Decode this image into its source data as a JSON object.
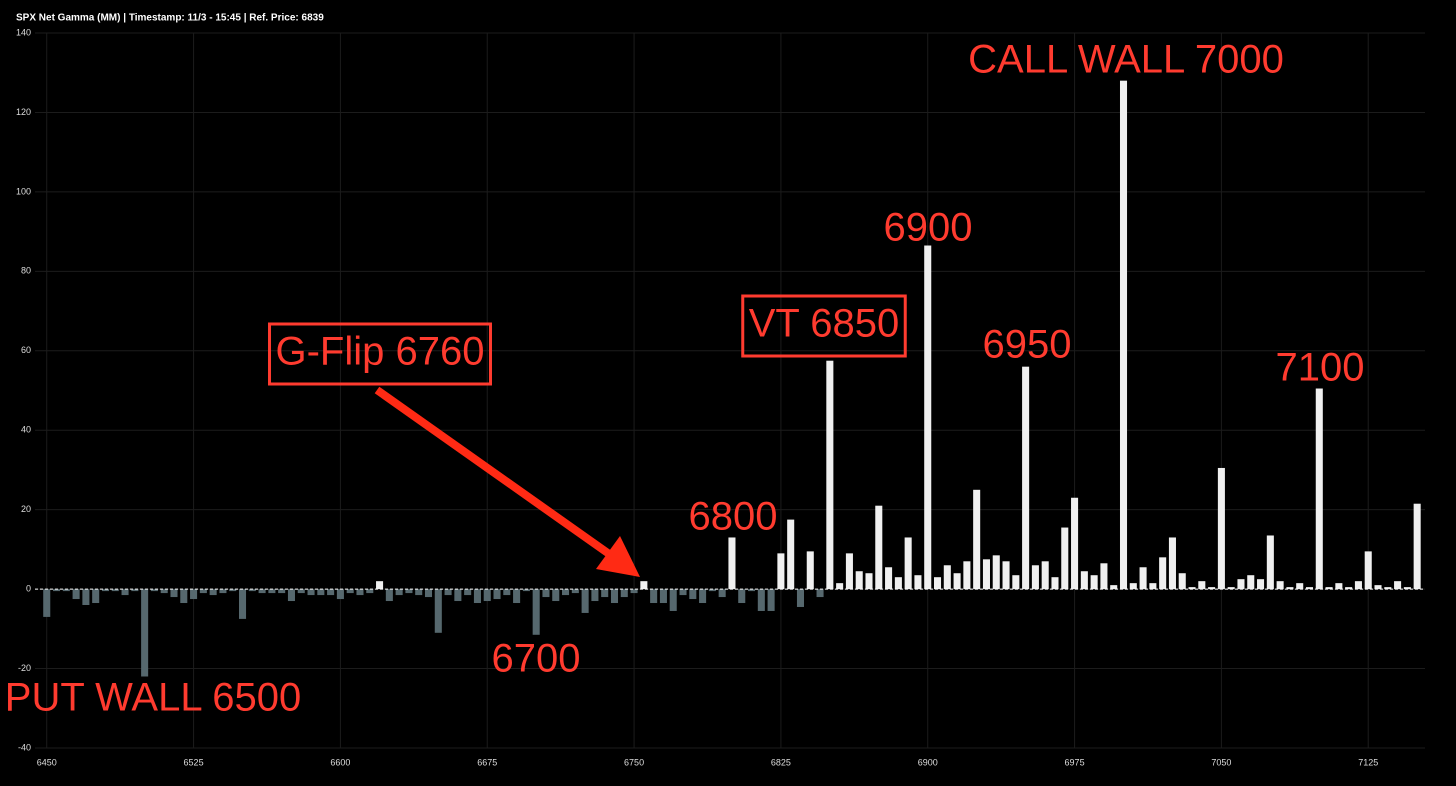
{
  "chart_data": {
    "type": "bar",
    "title": "SPX Net Gamma (MM) | Timestamp: 11/3 - 15:45  | Ref. Price: 6839",
    "x": [
      6450,
      6455,
      6460,
      6465,
      6470,
      6475,
      6480,
      6485,
      6490,
      6495,
      6500,
      6505,
      6510,
      6515,
      6520,
      6525,
      6530,
      6535,
      6540,
      6545,
      6550,
      6555,
      6560,
      6565,
      6570,
      6575,
      6580,
      6585,
      6590,
      6595,
      6600,
      6605,
      6610,
      6615,
      6620,
      6625,
      6630,
      6635,
      6640,
      6645,
      6650,
      6655,
      6660,
      6665,
      6670,
      6675,
      6680,
      6685,
      6690,
      6695,
      6700,
      6705,
      6710,
      6715,
      6720,
      6725,
      6730,
      6735,
      6740,
      6745,
      6750,
      6755,
      6760,
      6765,
      6770,
      6775,
      6780,
      6785,
      6790,
      6795,
      6800,
      6805,
      6810,
      6815,
      6820,
      6825,
      6830,
      6835,
      6840,
      6845,
      6850,
      6855,
      6860,
      6865,
      6870,
      6875,
      6880,
      6885,
      6890,
      6895,
      6900,
      6905,
      6910,
      6915,
      6920,
      6925,
      6930,
      6935,
      6940,
      6945,
      6950,
      6955,
      6960,
      6965,
      6970,
      6975,
      6980,
      6985,
      6990,
      6995,
      7000,
      7005,
      7010,
      7015,
      7020,
      7025,
      7030,
      7035,
      7040,
      7045,
      7050,
      7055,
      7060,
      7065,
      7070,
      7075,
      7080,
      7085,
      7090,
      7095,
      7100,
      7105,
      7110,
      7115,
      7120,
      7125,
      7130,
      7135,
      7140,
      7145,
      7150
    ],
    "values": [
      -7,
      -0.5,
      -0.5,
      -2.5,
      -4,
      -3.5,
      -0.5,
      -0.5,
      -1.5,
      -0.5,
      -22,
      -0.5,
      -1,
      -2,
      -3.5,
      -2.5,
      -1,
      -1.5,
      -1,
      -0.5,
      -7.5,
      -0.5,
      -1,
      -1,
      -1,
      -3,
      -1,
      -1.5,
      -1.5,
      -1.5,
      -2.5,
      -1,
      -1.5,
      -1,
      2,
      -3,
      -1.5,
      -1,
      -1.5,
      -2,
      -11,
      -1.5,
      -3,
      -1.5,
      -3.5,
      -3,
      -2.5,
      -1.5,
      -3.5,
      -0.5,
      -11.5,
      -2,
      -3,
      -1.5,
      -1,
      -6,
      -3,
      -2,
      -3.5,
      -2,
      -1,
      2,
      -3.5,
      -3.5,
      -5.5,
      -1.5,
      -2.5,
      -3.5,
      -0.5,
      -2,
      13,
      -3.5,
      -0.5,
      -5.5,
      -5.5,
      9,
      17.5,
      -4.5,
      9.5,
      -2,
      57.5,
      1.5,
      9,
      4.5,
      4,
      21,
      5.5,
      3,
      13,
      3.5,
      86.5,
      3,
      6,
      4,
      7,
      25,
      7.5,
      8.5,
      7,
      3.5,
      56,
      6,
      7,
      3,
      15.5,
      23,
      4.5,
      3.5,
      6.5,
      1,
      128,
      1.5,
      5.5,
      1.5,
      8,
      13,
      4,
      0.5,
      2,
      0.5,
      30.5,
      0.5,
      2.5,
      3.5,
      2.5,
      13.5,
      2,
      0.5,
      1.5,
      0.5,
      50.5,
      0.5,
      1.5,
      0.5,
      2,
      9.5,
      1,
      0.5,
      2,
      0.5,
      21.5
    ],
    "colors": {
      "positive": "#f0f0f0",
      "negative": "#56686e"
    },
    "xlim": [
      6444,
      7154
    ],
    "xticks": [
      6450,
      6525,
      6600,
      6675,
      6750,
      6825,
      6900,
      6975,
      7050,
      7125
    ],
    "ylim": [
      -40,
      140
    ],
    "yticks": [
      -40,
      -20,
      0,
      20,
      40,
      60,
      80,
      100,
      120,
      140
    ],
    "grid": true,
    "annotations": [
      "CALL WALL 7000",
      "6900",
      "VT 6850",
      "6950",
      "7100",
      "6800",
      "G-Flip 6760",
      "6700",
      "PUT WALL 6500"
    ]
  }
}
